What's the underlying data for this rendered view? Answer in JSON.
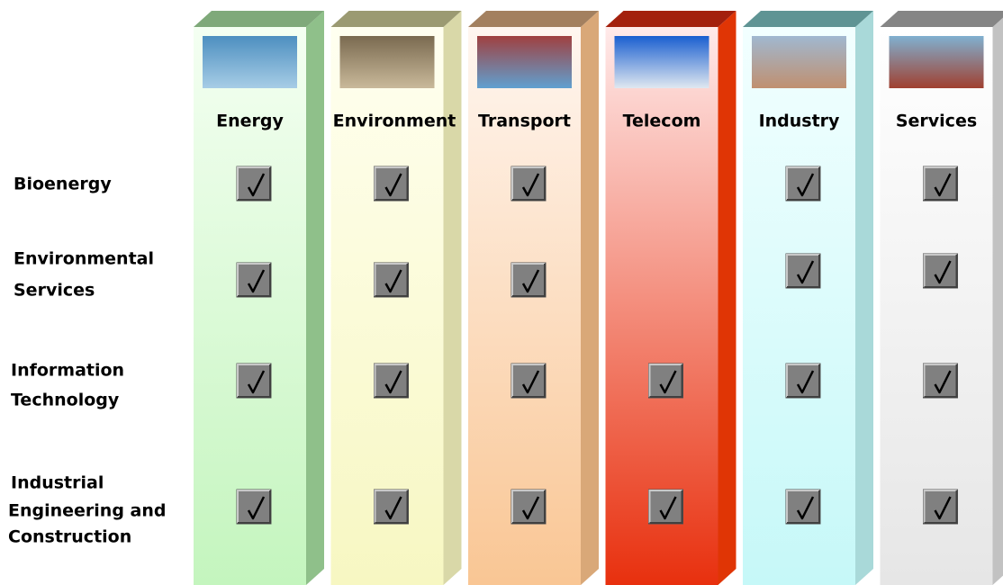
{
  "columns": [
    {
      "name": "Energy"
    },
    {
      "name": "Environment"
    },
    {
      "name": "Transport"
    },
    {
      "name": "Telecom"
    },
    {
      "name": "Industry"
    },
    {
      "name": "Services"
    }
  ],
  "rows": [
    {
      "label": [
        "Bioenergy"
      ],
      "checks": [
        true,
        true,
        true,
        false,
        true,
        true
      ]
    },
    {
      "label": [
        "Environmental",
        "Services"
      ],
      "checks": [
        true,
        true,
        true,
        false,
        true,
        true
      ]
    },
    {
      "label": [
        "Information",
        "Technology"
      ],
      "checks": [
        true,
        true,
        true,
        true,
        true,
        true
      ]
    },
    {
      "label": [
        "Industrial",
        "Engineering and",
        "Construction"
      ],
      "checks": [
        true,
        true,
        true,
        true,
        true,
        true
      ]
    }
  ]
}
